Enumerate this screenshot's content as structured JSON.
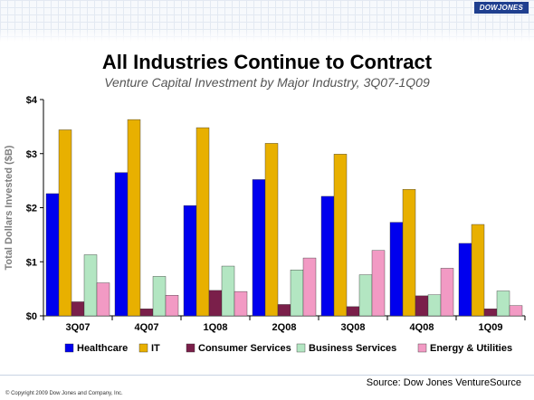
{
  "header": {
    "brand": "DOWJONES"
  },
  "chart_data": {
    "type": "bar",
    "title": "All Industries Continue to Contract",
    "subtitle": "Venture Capital Investment by Major Industry, 3Q07-1Q09",
    "ylabel": "Total Dollars Invested ($B)",
    "xlabel": "",
    "ylim": [
      0,
      4
    ],
    "y_ticks": [
      0,
      1,
      2,
      3,
      4
    ],
    "y_tick_labels": [
      "$0",
      "$1",
      "$2",
      "$3",
      "$4"
    ],
    "grid": false,
    "legend_position": "bottom",
    "categories": [
      "3Q07",
      "4Q07",
      "1Q08",
      "2Q08",
      "3Q08",
      "4Q08",
      "1Q09"
    ],
    "series": [
      {
        "name": "Healthcare",
        "color": "#0000ee",
        "values": [
          2.26,
          2.65,
          2.04,
          2.52,
          2.21,
          1.73,
          1.34
        ]
      },
      {
        "name": "IT",
        "color": "#e8b000",
        "values": [
          3.44,
          3.63,
          3.48,
          3.19,
          2.99,
          2.34,
          1.69
        ]
      },
      {
        "name": "Consumer Services",
        "color": "#7a1f4a",
        "values": [
          0.26,
          0.13,
          0.47,
          0.21,
          0.17,
          0.37,
          0.13
        ]
      },
      {
        "name": "Business Services",
        "color": "#b3e6c2",
        "values": [
          1.13,
          0.73,
          0.92,
          0.85,
          0.76,
          0.39,
          0.46
        ]
      },
      {
        "name": "Energy & Utilities",
        "color": "#f29ac4",
        "values": [
          0.61,
          0.38,
          0.45,
          1.07,
          1.21,
          0.88,
          0.19
        ]
      }
    ]
  },
  "footer": {
    "source": "Source: Dow Jones VentureSource",
    "copyright": "© Copyright 2009 Dow Jones and Company, Inc."
  }
}
